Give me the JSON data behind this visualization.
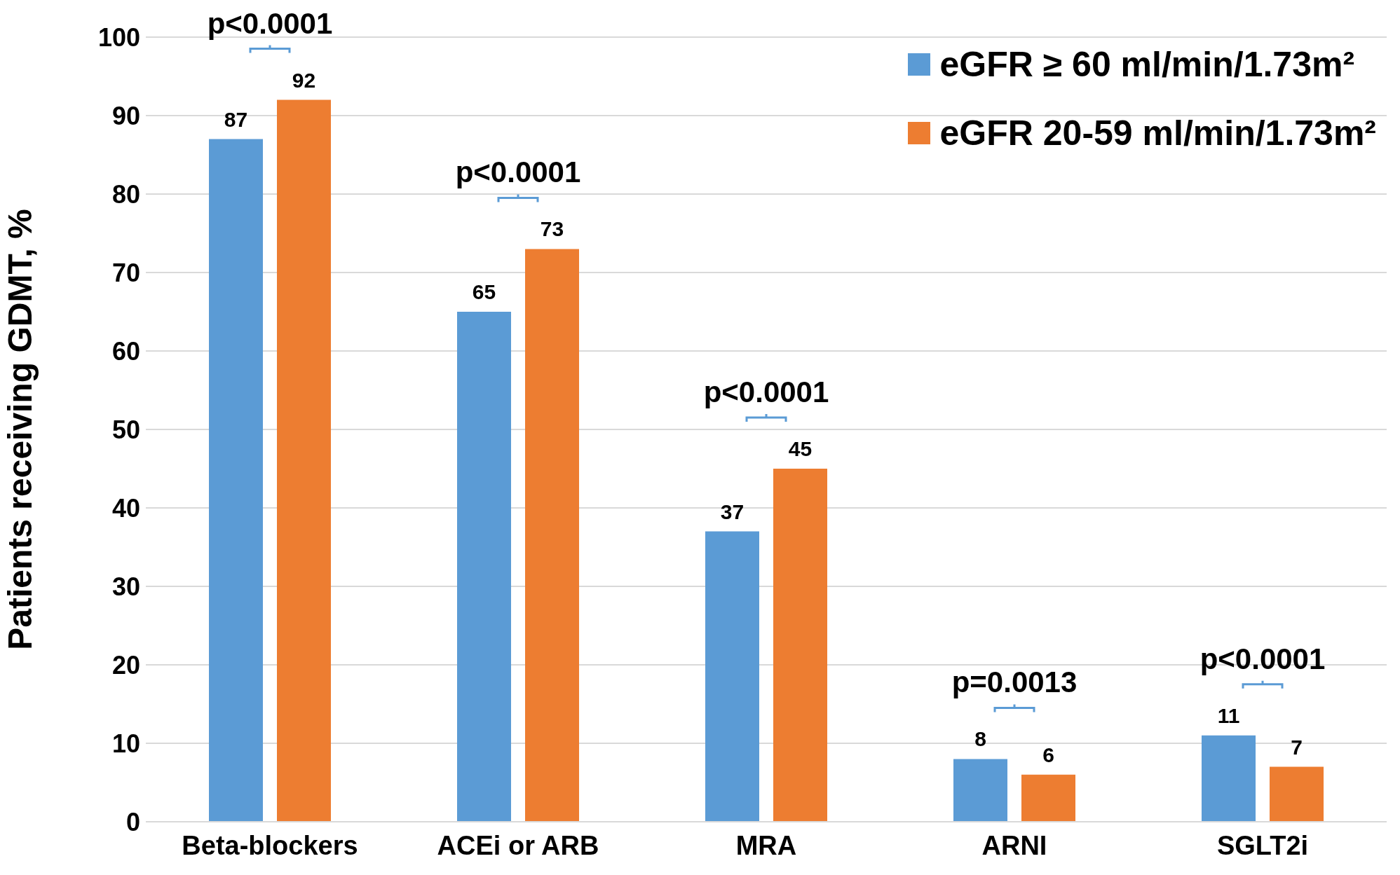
{
  "chart_data": {
    "type": "bar",
    "ylabel": "Patients receiving GDMT, %",
    "categories": [
      "Beta-blockers",
      "ACEi or ARB",
      "MRA",
      "ARNI",
      "SGLT2i"
    ],
    "series": [
      {
        "name": "eGFR ≥ 60 ml/min/1.73m²",
        "color": "#5b9bd5",
        "values": [
          87,
          65,
          37,
          8,
          11
        ]
      },
      {
        "name": "eGFR 20-59 ml/min/1.73m²",
        "color": "#ed7d31",
        "values": [
          92,
          73,
          45,
          6,
          7
        ]
      }
    ],
    "ylim": [
      0,
      100
    ],
    "yticks": [
      0,
      10,
      20,
      30,
      40,
      50,
      60,
      70,
      80,
      90,
      100
    ],
    "grid": "y",
    "legend": "top right",
    "data_labels": true,
    "annotations": [
      "p<0.0001",
      "p<0.0001",
      "p<0.0001",
      "p=0.0013",
      "p<0.0001"
    ]
  }
}
